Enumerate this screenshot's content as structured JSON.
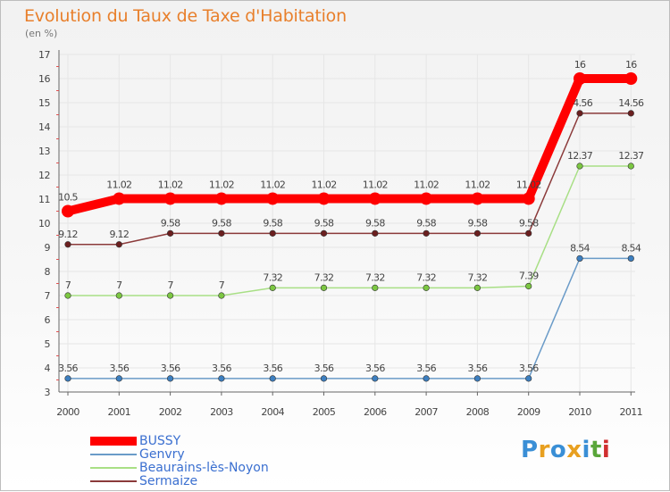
{
  "title": "Evolution du Taux de Taxe d'Habitation",
  "subtitle": "(en %)",
  "logo": {
    "text": "Proxiti",
    "letters": [
      "P",
      "r",
      "o",
      "x",
      "i",
      "t",
      "i"
    ],
    "letter_colors": [
      "#3a8fd6",
      "#e8a020",
      "#3a8fd6",
      "#e8a020",
      "#3a8fd6",
      "#5aa63a",
      "#d03030"
    ]
  },
  "chart_data": {
    "type": "line",
    "title": "Evolution du Taux de Taxe d'Habitation",
    "ylabel": "(en %)",
    "xlabel": "",
    "categories": [
      "2000",
      "2001",
      "2002",
      "2003",
      "2004",
      "2005",
      "2006",
      "2007",
      "2008",
      "2009",
      "2010",
      "2011"
    ],
    "ylim": [
      3,
      17
    ],
    "yticks": [
      3,
      4,
      5,
      6,
      7,
      8,
      9,
      10,
      11,
      12,
      13,
      14,
      15,
      16,
      17
    ],
    "grid": true,
    "legend": "bottom-left",
    "series": [
      {
        "name": "Genvry",
        "color": "#6a9bc8",
        "dot_color": "#3d7fc0",
        "emphasis": false,
        "values": [
          3.56,
          3.56,
          3.56,
          3.56,
          3.56,
          3.56,
          3.56,
          3.56,
          3.56,
          3.56,
          8.54,
          8.54
        ],
        "labels": [
          "3.56",
          "3.56",
          "3.56",
          "3.56",
          "3.56",
          "3.56",
          "3.56",
          "3.56",
          "3.56",
          "3.56",
          "8.54",
          "8.54"
        ]
      },
      {
        "name": "Beaurains-lès-Noyon",
        "color": "#a8df85",
        "dot_color": "#7cc742",
        "emphasis": false,
        "values": [
          7,
          7,
          7,
          7,
          7.32,
          7.32,
          7.32,
          7.32,
          7.32,
          7.39,
          12.37,
          12.37
        ],
        "labels": [
          "7",
          "7",
          "7",
          "7",
          "7.32",
          "7.32",
          "7.32",
          "7.32",
          "7.32",
          "7.39",
          "12.37",
          "12.37"
        ]
      },
      {
        "name": "Sermaize",
        "color": "#8b3a3a",
        "dot_color": "#6b1f1f",
        "emphasis": false,
        "values": [
          9.12,
          9.12,
          9.58,
          9.58,
          9.58,
          9.58,
          9.58,
          9.58,
          9.58,
          9.58,
          14.56,
          14.56
        ],
        "labels": [
          "9.12",
          "9.12",
          "9.58",
          "9.58",
          "9.58",
          "9.58",
          "9.58",
          "9.58",
          "9.58",
          "9.58",
          "14.56",
          "14.56"
        ]
      },
      {
        "name": "BUSSY",
        "color": "#ff0000",
        "dot_color": "#ff0000",
        "emphasis": true,
        "values": [
          10.5,
          11.02,
          11.02,
          11.02,
          11.02,
          11.02,
          11.02,
          11.02,
          11.02,
          11.02,
          16,
          16
        ],
        "labels": [
          "10.5",
          "11.02",
          "11.02",
          "11.02",
          "11.02",
          "11.02",
          "11.02",
          "11.02",
          "11.02",
          "11.02",
          "16",
          "16"
        ]
      }
    ],
    "legend_order": [
      "BUSSY",
      "Genvry",
      "Beaurains-lès-Noyon",
      "Sermaize"
    ]
  }
}
